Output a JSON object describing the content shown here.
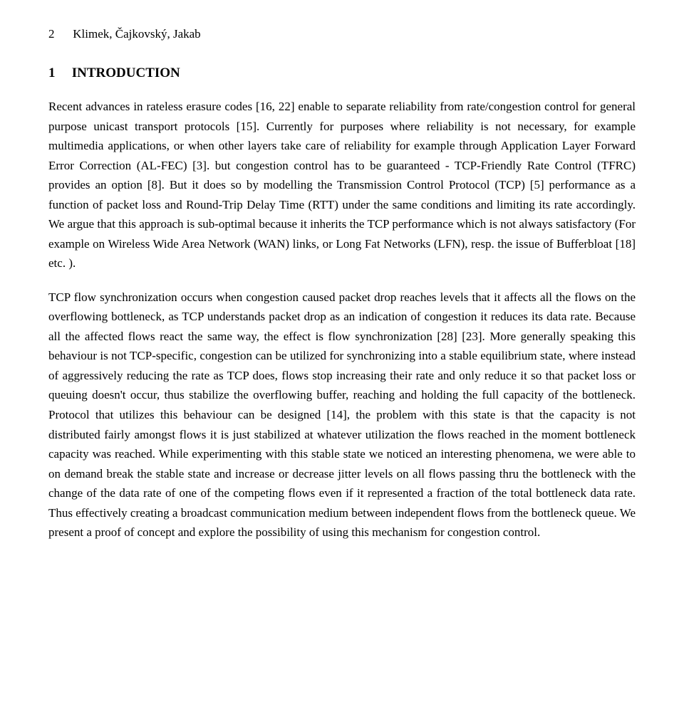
{
  "header": {
    "page_number": "2",
    "running_head": "Klimek, Čajkovský, Jakab"
  },
  "section": {
    "number": "1",
    "title": "INTRODUCTION"
  },
  "paragraphs": {
    "p1": "Recent advances in rateless erasure codes [16, 22] enable to separate reliability from rate/congestion control for general purpose unicast transport protocols [15]. Currently for purposes where reliability is not necessary, for example multimedia applications, or when other layers take care of reliability for example through Application Layer Forward Error Correction (AL-FEC) [3]. but congestion control has to be guaranteed - TCP-Friendly Rate Control (TFRC) provides an option [8]. But it does so by modelling the Transmission Control Protocol (TCP) [5] performance as a function of packet loss and Round-Trip Delay Time (RTT) under the same conditions and limiting its rate accordingly. We argue that this approach is sub-optimal because it inherits the TCP performance which is not always satisfactory (For example on Wireless Wide Area Network (WAN) links, or Long Fat Networks (LFN), resp. the issue of Bufferbloat [18] etc. ).",
    "p2": "TCP flow synchronization occurs when congestion caused packet drop reaches levels that it affects all the flows on the overflowing bottleneck, as TCP understands packet drop as an indication of congestion it reduces its data rate. Because all the affected flows react the same way, the effect is flow synchronization [28] [23]. More generally speaking this behaviour is not TCP-specific, congestion can be utilized for synchronizing into a stable equilibrium state, where instead of aggressively reducing the rate as TCP does, flows stop increasing their rate and only reduce it so that packet loss or queuing doesn't occur, thus stabilize the overflowing buffer, reaching and holding the full capacity of the bottleneck. Protocol that utilizes this behaviour can be designed [14], the problem with this state is that the capacity is not distributed fairly amongst flows it is just stabilized at whatever utilization the flows reached in the moment bottleneck capacity was reached. While experimenting with this stable state we noticed an interesting phenomena, we were able to on demand break the stable state and increase or decrease jitter levels on all flows passing thru the bottleneck with the change of the data rate of one of the competing flows even if it represented a fraction of the total bottleneck data rate. Thus effectively creating a broadcast communication medium between independent flows from the bottleneck queue. We present a proof of concept and explore the possibility of using this mechanism for congestion control."
  }
}
